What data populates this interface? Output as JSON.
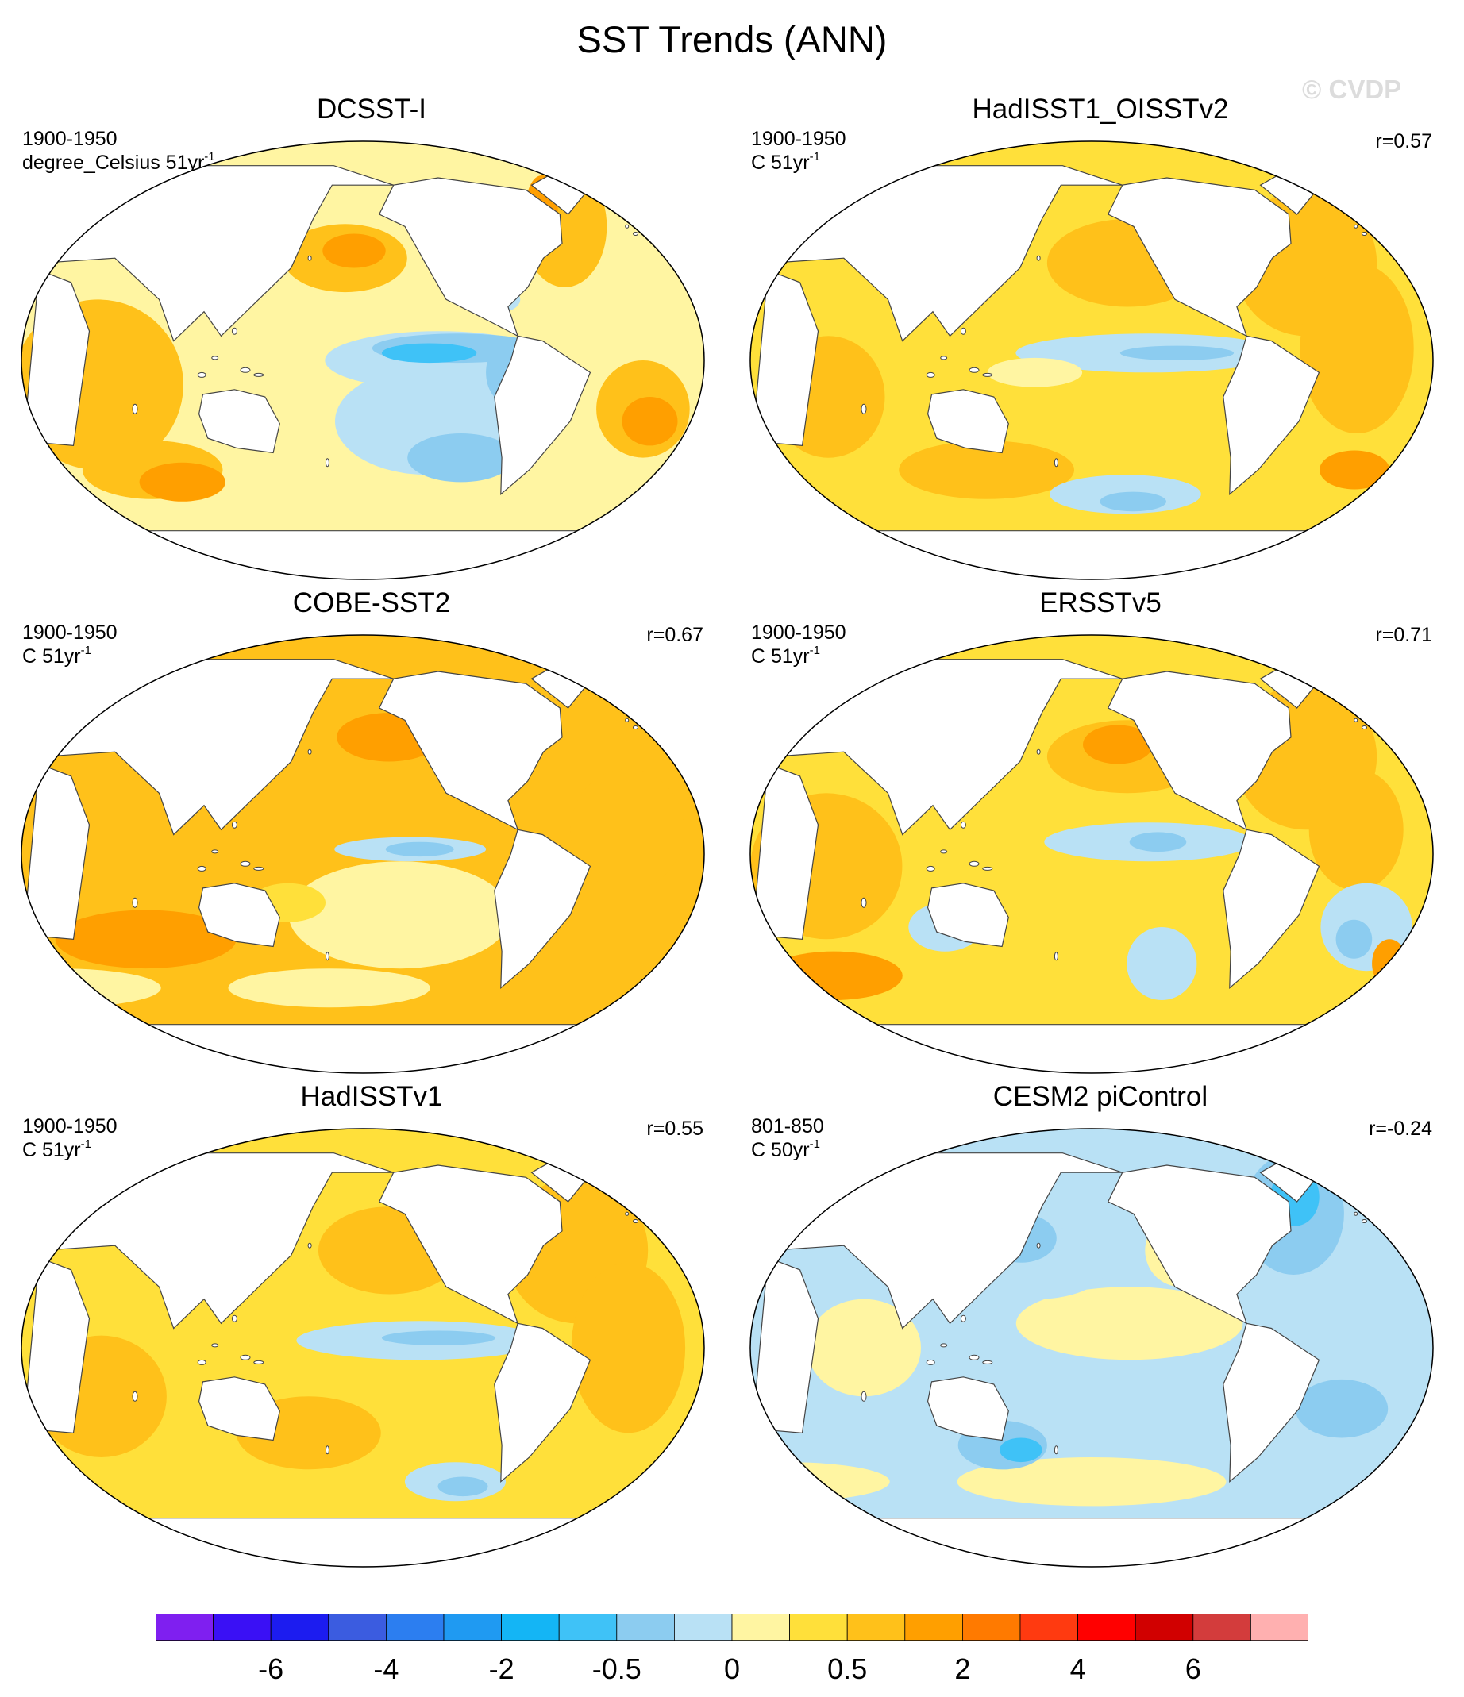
{
  "title": "SST Trends (ANN)",
  "watermark": "© CVDP",
  "colors": {
    "land": "#ffffff",
    "coast": "#444444",
    "scale": [
      "#7f1ff0",
      "#3a10f5",
      "#1c1cf0",
      "#3b5ce0",
      "#2c7ef0",
      "#1f9af2",
      "#14b5f5",
      "#3fc2f7",
      "#8cccf0",
      "#b9e1f5",
      "#fff5a2",
      "#ffe03a",
      "#ffc11a",
      "#ff9f00",
      "#ff7a00",
      "#ff3a10",
      "#ff0000",
      "#d10000",
      "#d33c3c",
      "#ffb0b0"
    ]
  },
  "colorbar": {
    "labels": [
      "-6",
      "-4",
      "-2",
      "-0.5",
      "0",
      "0.5",
      "2",
      "4",
      "6"
    ]
  },
  "panels": [
    {
      "title": "DCSST-I",
      "period": "1900-1950",
      "units": "degree_Celsius 51yr",
      "units_exp": "-1",
      "corr": "",
      "pattern": "dcsst"
    },
    {
      "title": "HadISST1_OISSTv2",
      "period": "1900-1950",
      "units": "C 51yr",
      "units_exp": "-1",
      "corr": "r=0.57",
      "pattern": "hadoi"
    },
    {
      "title": "COBE-SST2",
      "period": "1900-1950",
      "units": "C 51yr",
      "units_exp": "-1",
      "corr": "r=0.67",
      "pattern": "cobe"
    },
    {
      "title": "ERSSTv5",
      "period": "1900-1950",
      "units": "C 51yr",
      "units_exp": "-1",
      "corr": "r=0.71",
      "pattern": "ersst"
    },
    {
      "title": "HadISSTv1",
      "period": "1900-1950",
      "units": "C 51yr",
      "units_exp": "-1",
      "corr": "r=0.55",
      "pattern": "hadisst"
    },
    {
      "title": "CESM2 piControl",
      "period": "801-850",
      "units": "C 50yr",
      "units_exp": "-1",
      "corr": "r=-0.24",
      "pattern": "cesm"
    }
  ]
}
